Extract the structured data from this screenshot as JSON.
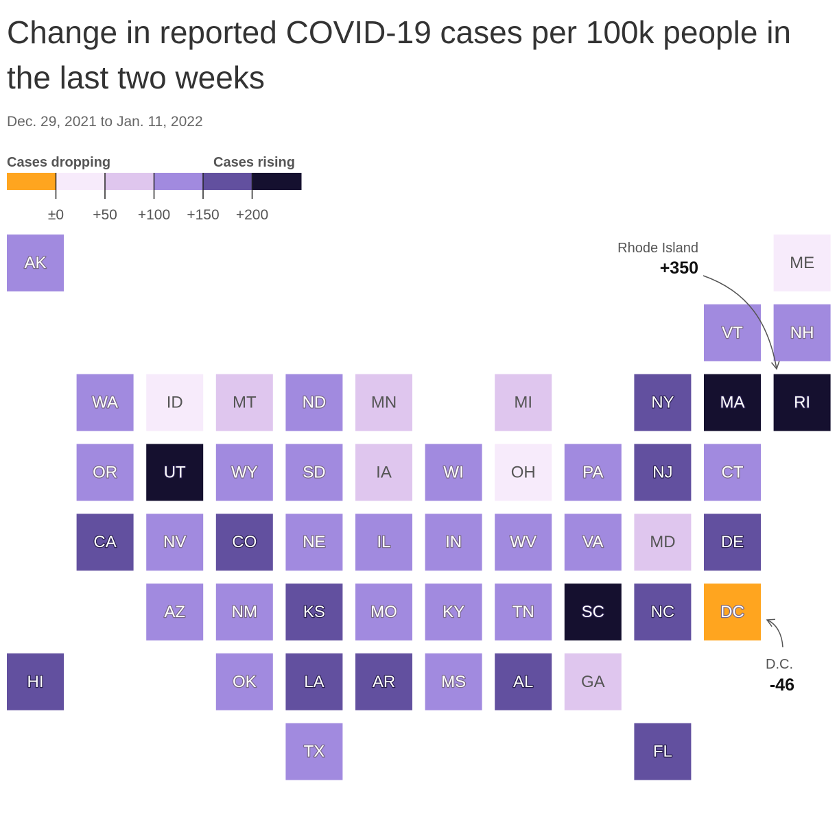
{
  "title": "Change in reported COVID-19 cases per 100k people in the last two weeks",
  "subtitle": "Dec. 29, 2021 to Jan. 11, 2022",
  "legend": {
    "left_label": "Cases dropping",
    "right_label": "Cases rising",
    "ticks": [
      "±0",
      "+50",
      "+100",
      "+150",
      "+200"
    ],
    "colors": [
      "#ffa51f",
      "#f7ebfb",
      "#dfc6ee",
      "#a18adf",
      "#62509f",
      "#15102f"
    ]
  },
  "annotations": {
    "ri": {
      "name": "Rhode Island",
      "value": "+350"
    },
    "dc": {
      "name": "D.C.",
      "value": "-46"
    }
  },
  "chart_data": {
    "type": "tile-grid-map",
    "bins": [
      {
        "range": "< ±0",
        "color": "#ffa51f"
      },
      {
        "range": "±0 to +50",
        "color": "#f7ebfb"
      },
      {
        "range": "+50 to +100",
        "color": "#dfc6ee"
      },
      {
        "range": "+100 to +150",
        "color": "#a18adf"
      },
      {
        "range": "+150 to +200",
        "color": "#62509f"
      },
      {
        "range": "> +200",
        "color": "#15102f"
      }
    ],
    "states": [
      {
        "abbr": "AK",
        "bin": 3
      },
      {
        "abbr": "ME",
        "bin": 1
      },
      {
        "abbr": "VT",
        "bin": 3
      },
      {
        "abbr": "NH",
        "bin": 3
      },
      {
        "abbr": "WA",
        "bin": 3
      },
      {
        "abbr": "ID",
        "bin": 1
      },
      {
        "abbr": "MT",
        "bin": 2
      },
      {
        "abbr": "ND",
        "bin": 3
      },
      {
        "abbr": "MN",
        "bin": 2
      },
      {
        "abbr": "MI",
        "bin": 2
      },
      {
        "abbr": "NY",
        "bin": 4
      },
      {
        "abbr": "MA",
        "bin": 5
      },
      {
        "abbr": "RI",
        "bin": 5
      },
      {
        "abbr": "OR",
        "bin": 3
      },
      {
        "abbr": "UT",
        "bin": 5
      },
      {
        "abbr": "WY",
        "bin": 3
      },
      {
        "abbr": "SD",
        "bin": 3
      },
      {
        "abbr": "IA",
        "bin": 2
      },
      {
        "abbr": "WI",
        "bin": 3
      },
      {
        "abbr": "OH",
        "bin": 1
      },
      {
        "abbr": "PA",
        "bin": 3
      },
      {
        "abbr": "NJ",
        "bin": 4
      },
      {
        "abbr": "CT",
        "bin": 3
      },
      {
        "abbr": "CA",
        "bin": 4
      },
      {
        "abbr": "NV",
        "bin": 3
      },
      {
        "abbr": "CO",
        "bin": 4
      },
      {
        "abbr": "NE",
        "bin": 3
      },
      {
        "abbr": "IL",
        "bin": 3
      },
      {
        "abbr": "IN",
        "bin": 3
      },
      {
        "abbr": "WV",
        "bin": 3
      },
      {
        "abbr": "VA",
        "bin": 3
      },
      {
        "abbr": "MD",
        "bin": 2
      },
      {
        "abbr": "DE",
        "bin": 4
      },
      {
        "abbr": "AZ",
        "bin": 3
      },
      {
        "abbr": "NM",
        "bin": 3
      },
      {
        "abbr": "KS",
        "bin": 4
      },
      {
        "abbr": "MO",
        "bin": 3
      },
      {
        "abbr": "KY",
        "bin": 3
      },
      {
        "abbr": "TN",
        "bin": 3
      },
      {
        "abbr": "SC",
        "bin": 5
      },
      {
        "abbr": "NC",
        "bin": 4
      },
      {
        "abbr": "DC",
        "bin": 0,
        "value": -46
      },
      {
        "abbr": "HI",
        "bin": 4
      },
      {
        "abbr": "OK",
        "bin": 3
      },
      {
        "abbr": "LA",
        "bin": 4
      },
      {
        "abbr": "AR",
        "bin": 4
      },
      {
        "abbr": "MS",
        "bin": 3
      },
      {
        "abbr": "AL",
        "bin": 4
      },
      {
        "abbr": "GA",
        "bin": 2
      },
      {
        "abbr": "TX",
        "bin": 3
      },
      {
        "abbr": "FL",
        "bin": 4
      }
    ],
    "highlights": [
      {
        "abbr": "RI",
        "value": 350
      },
      {
        "abbr": "DC",
        "value": -46
      }
    ]
  }
}
